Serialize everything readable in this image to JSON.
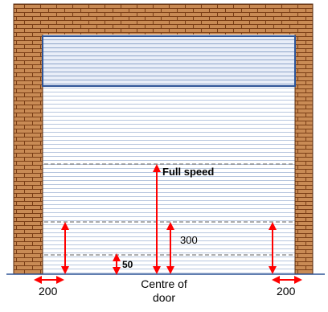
{
  "diagram": {
    "labels": {
      "full_speed": "Full speed",
      "height_300": "300",
      "height_50": "50",
      "left_margin": "200",
      "right_margin": "200",
      "centre_line1": "Centre of",
      "centre_line2": "door"
    },
    "colors": {
      "brick": "#c98b55",
      "mortar": "#7a3e16",
      "wall_line": "#5a2e10",
      "shutter_bg": "#ffffff",
      "slat_line": "#b7c6de",
      "box_fill": "#e9eef8",
      "box_line": "#2f5597",
      "box_slat": "#8ea4c8",
      "dashed": "#7f7f7f",
      "arrow": "#ff0000",
      "ground": "#2f5597"
    }
  }
}
